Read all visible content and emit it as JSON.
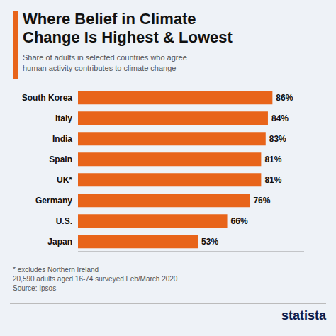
{
  "chart_data": {
    "type": "bar",
    "orientation": "horizontal",
    "title": "Where Belief in Climate\nChange Is Highest & Lowest",
    "subtitle": "Share of adults in selected countries who agree\nhuman activity contributes to climate change",
    "categories": [
      "South Korea",
      "Italy",
      "India",
      "Spain",
      "UK*",
      "Germany",
      "U.S.",
      "Japan"
    ],
    "values": [
      86,
      84,
      83,
      81,
      81,
      76,
      66,
      53
    ],
    "value_labels": [
      "86%",
      "84%",
      "83%",
      "81%",
      "81%",
      "76%",
      "66%",
      "53%"
    ],
    "data_labels": true,
    "color": "#E8641A",
    "xlim": [
      0,
      100
    ],
    "grid": false,
    "tick_labels": "y",
    "annotations": [
      "* excludes Northern Ireland\n20,590 adults aged 16-74 surveyed Feb/March 2020\nSource: Ipsos",
      "statista"
    ]
  }
}
